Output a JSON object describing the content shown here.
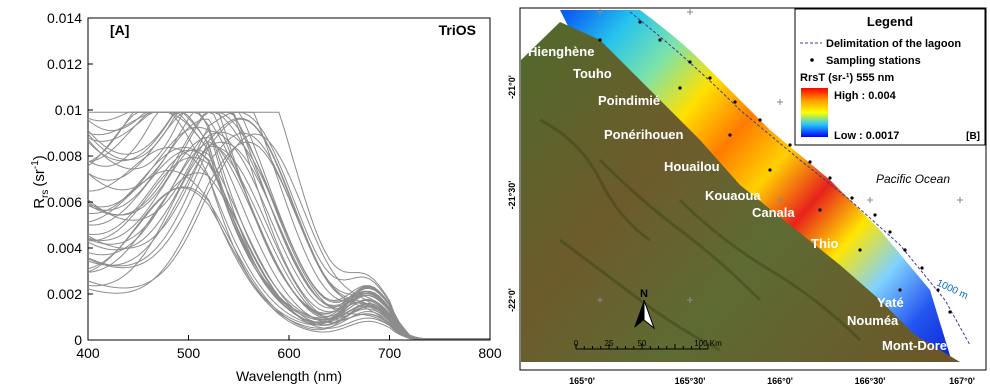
{
  "chart_data": [
    {
      "type": "line",
      "panel_label": "[A]",
      "instrument_label": "TriOS",
      "xlabel": "Wavelength (nm)",
      "ylabel_main": "R",
      "ylabel_sub": "rs",
      "ylabel_unit": "(sr",
      "ylabel_exp": "-1",
      "ylabel_close": ")",
      "xlim": [
        400,
        800
      ],
      "ylim": [
        0,
        0.014
      ],
      "x_ticks": [
        "400",
        "500",
        "600",
        "700",
        "800"
      ],
      "y_ticks": [
        "0",
        "0.002",
        "0.004",
        "0.006",
        "0.008",
        "0.01",
        "0.012",
        "0.014"
      ],
      "grid": false,
      "line_color": "#8c8c8c",
      "series_count": 40
    },
    {
      "type": "heatmap",
      "panel_label": "[B]",
      "legend": {
        "title": "Legend",
        "items": [
          "Delimitation of the lagoon",
          "Sampling stations"
        ],
        "variable": "RrsT (sr-¹) 555 nm",
        "high_label": "High : 0.004",
        "low_label": "Low : 0.0017",
        "high": 0.004,
        "low": 0.0017
      },
      "places": [
        "Hienghène",
        "Touho",
        "Poindimié",
        "Ponérihouen",
        "Houailou",
        "Kouaoua",
        "Canala",
        "Thio",
        "Yaté",
        "Nouméa",
        "Mont-Dore"
      ],
      "ocean_label": "Pacific Ocean",
      "isobath_label": "1000 m",
      "north_label": "N",
      "scale_labels": [
        "0",
        "25",
        "50",
        "100 Km"
      ],
      "lon_ticks": [
        "165°0'",
        "165°30'",
        "166°0'",
        "166°30'",
        "167°0'"
      ],
      "lat_ticks": [
        "-21°0'",
        "-21°30'",
        "-22°0'"
      ],
      "colors": {
        "high": "#e8001c",
        "mid": "#ffe800",
        "low": "#0017e0",
        "land": "#6a5a2a"
      }
    }
  ]
}
